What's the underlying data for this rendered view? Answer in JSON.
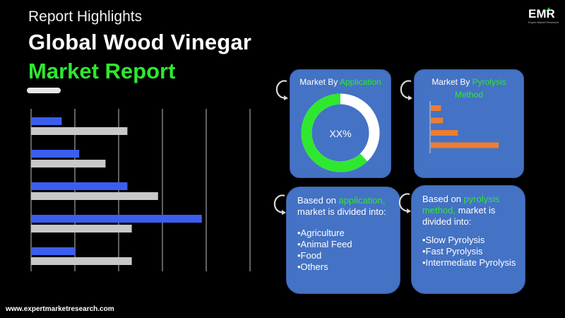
{
  "header": {
    "highlights_label": "Report Highlights",
    "title_line1": "Global Wood Vinegar",
    "title_line2": "Market Report"
  },
  "logo": {
    "text": "EMR",
    "tagline": "Expert Market Research"
  },
  "colors": {
    "accent_green": "#2ee830",
    "bar_blue": "#3b5ef0",
    "bar_gray": "#c8c8c8",
    "panel_blue": "#4472c4",
    "bar_orange": "#ed7d31"
  },
  "chart_data": [
    {
      "type": "bar",
      "orientation": "horizontal",
      "categories": [
        "",
        "",
        "",
        "",
        ""
      ],
      "series": [
        {
          "values": [
            7,
            11,
            22,
            39,
            10
          ]
        },
        {
          "values": [
            22,
            17,
            29,
            23,
            23
          ]
        }
      ],
      "xlim": [
        0,
        50
      ],
      "grid": true
    },
    {
      "type": "pie",
      "style": "donut",
      "title_prefix": "Market By ",
      "title_highlight": "Application",
      "center_label": "XX%",
      "values": [
        62,
        38
      ],
      "colors": [
        "#2ee830",
        "#ffffff"
      ]
    },
    {
      "type": "bar",
      "orientation": "horizontal",
      "title_prefix": "Market By ",
      "title_highlight": "Pyrolysis",
      "title_line2": "Method",
      "categories": [
        "",
        "",
        "",
        ""
      ],
      "values": [
        1.5,
        1.8,
        4,
        10
      ],
      "xlim": [
        0,
        10
      ]
    }
  ],
  "application_desc": {
    "prefix": "Based on ",
    "highlight": "application,",
    "suffix": "market is divided into:",
    "items": [
      "•Agriculture",
      "•Animal Feed",
      "•Food",
      "•Others"
    ]
  },
  "pyrolysis_desc": {
    "prefix": "Based on ",
    "highlight": "pyrolysis method,",
    "suffix": "market is divided into:",
    "items": [
      "•Slow Pyrolysis",
      "•Fast Pyrolysis",
      "•Intermediate Pyrolysis"
    ]
  },
  "footer": {
    "url": "www.expertmarketresearch.com"
  }
}
